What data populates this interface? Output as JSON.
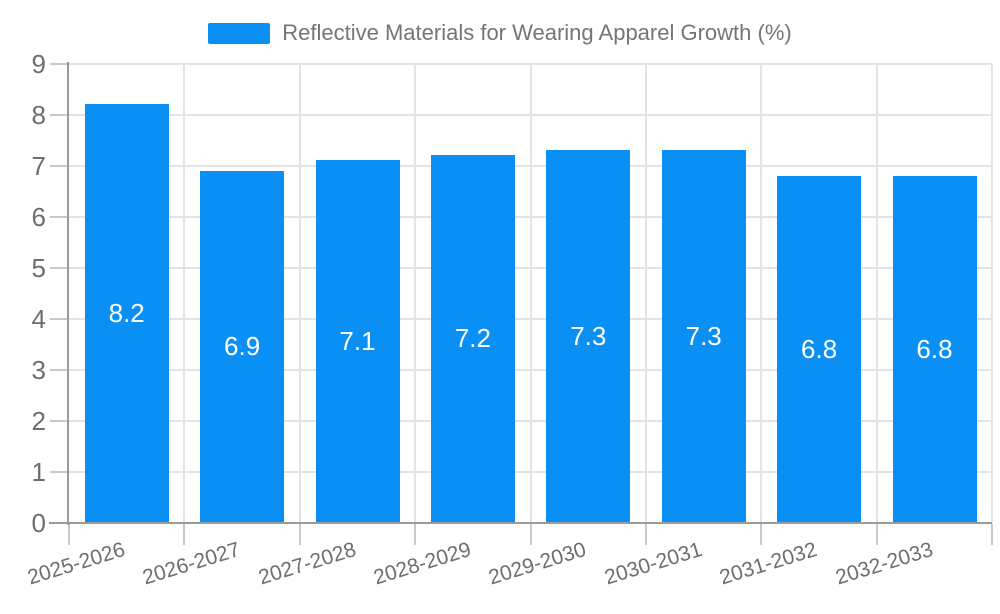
{
  "chart_data": {
    "type": "bar",
    "title": "Reflective Materials for Wearing Apparel Growth (%)",
    "legend": {
      "label": "Reflective Materials for Wearing Apparel Growth (%)",
      "position": "top-center"
    },
    "categories": [
      "2025-2026",
      "2026-2027",
      "2027-2028",
      "2028-2029",
      "2029-2030",
      "2030-2031",
      "2031-2032",
      "2032-2033"
    ],
    "series": [
      {
        "name": "Reflective Materials for Wearing Apparel Growth (%)",
        "values": [
          8.2,
          6.9,
          7.1,
          7.2,
          7.3,
          7.3,
          6.8,
          6.8
        ]
      }
    ],
    "xlabel": "",
    "ylabel": "",
    "ylim": [
      0,
      9
    ],
    "y_ticks": [
      0,
      1,
      2,
      3,
      4,
      5,
      6,
      7,
      8,
      9
    ],
    "grid": true,
    "value_label_position": "inside-center",
    "value_label_format": "1-decimal",
    "colors": {
      "bar": "#0A8FF5",
      "grid": "#E3E3E3",
      "axis": "#9B9B9B",
      "tick": "#C9C9C9",
      "tick_text": "#6E6E6E",
      "title_text": "#757575",
      "value_text": "#FFFFFF",
      "background": "#FFFFFF"
    }
  }
}
